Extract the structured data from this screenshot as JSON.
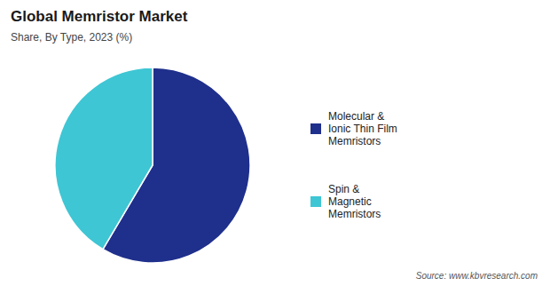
{
  "chart_data": {
    "type": "pie",
    "title": "Global Memristor Market",
    "subtitle": "Share, By Type,  2023 (%)",
    "source": "Source: www.kbvresearch.com",
    "categories": [
      "Molecular &\nIonic Thin Film\nMemristors",
      "Spin &\nMagnetic\nMemristors"
    ],
    "values": [
      58.5,
      41.5
    ],
    "colors": [
      "#1f2f8c",
      "#3ec6d4"
    ],
    "legend": "right"
  }
}
